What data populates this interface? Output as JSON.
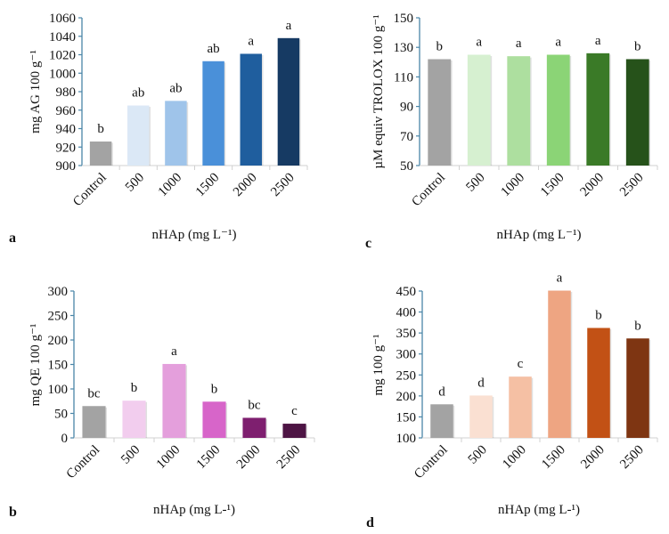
{
  "chart_data": [
    {
      "id": "a",
      "type": "bar",
      "panel_letter": "a",
      "categories": [
        "Control",
        "500",
        "1000",
        "1500",
        "2000",
        "2500"
      ],
      "values": [
        926,
        965,
        970,
        1013,
        1021,
        1038
      ],
      "significance": [
        "b",
        "ab",
        "ab",
        "ab",
        "a",
        "a"
      ],
      "colors": [
        "#a3a3a3",
        "#dbe8f6",
        "#9fc4ea",
        "#4a90d9",
        "#1f5e9e",
        "#163a63"
      ],
      "xlabel": "nHAp (mg L⁻¹)",
      "ylabel": "mg AG 100 g⁻¹",
      "ylim": [
        900,
        1060
      ],
      "yticks": [
        900,
        920,
        940,
        960,
        980,
        1000,
        1020,
        1040,
        1060
      ],
      "grid": false
    },
    {
      "id": "c",
      "type": "bar",
      "panel_letter": "c",
      "categories": [
        "Control",
        "500",
        "1000",
        "1500",
        "2000",
        "2500"
      ],
      "values": [
        122,
        125,
        124,
        125,
        126,
        122
      ],
      "significance": [
        "b",
        "a",
        "a",
        "a",
        "a",
        "b"
      ],
      "colors": [
        "#a3a3a3",
        "#d6f0d0",
        "#addf9f",
        "#8bd476",
        "#3a7a27",
        "#26521a"
      ],
      "xlabel": "nHAp (mg L⁻¹)",
      "ylabel": "µM equiv TROLOX 100 g⁻¹",
      "ylim": [
        50,
        150
      ],
      "yticks": [
        50,
        70,
        90,
        110,
        130,
        150
      ],
      "grid": false
    },
    {
      "id": "b",
      "type": "bar",
      "panel_letter": "b",
      "categories": [
        "Control",
        "500",
        "1000",
        "1500",
        "2000",
        "2500"
      ],
      "values": [
        65,
        76,
        151,
        74,
        41,
        29
      ],
      "significance": [
        "bc",
        "b",
        "a",
        "b",
        "bc",
        "c"
      ],
      "colors": [
        "#a3a3a3",
        "#f2cdee",
        "#e49fdc",
        "#d765c9",
        "#7e1f6f",
        "#4d1444"
      ],
      "xlabel": "nHAp (mg L-¹)",
      "ylabel": "mg QE 100 g⁻¹",
      "ylim": [
        0,
        300
      ],
      "yticks": [
        0,
        50,
        100,
        150,
        200,
        250,
        300
      ],
      "grid": false
    },
    {
      "id": "d",
      "type": "bar",
      "panel_letter": "d",
      "categories": [
        "Control",
        "500",
        "1000",
        "1500",
        "2000",
        "2500"
      ],
      "values": [
        180,
        201,
        246,
        451,
        362,
        337
      ],
      "significance": [
        "d",
        "d",
        "c",
        "a",
        "b",
        "b"
      ],
      "colors": [
        "#a3a3a3",
        "#fae0d2",
        "#f5c0a4",
        "#eea582",
        "#c25115",
        "#7e3512"
      ],
      "xlabel": "nHAp (mg L-¹)",
      "ylabel": "mg 100 g⁻¹",
      "ylim": [
        100,
        450
      ],
      "yticks": [
        100,
        150,
        200,
        250,
        300,
        350,
        400,
        450
      ],
      "grid": false
    }
  ]
}
